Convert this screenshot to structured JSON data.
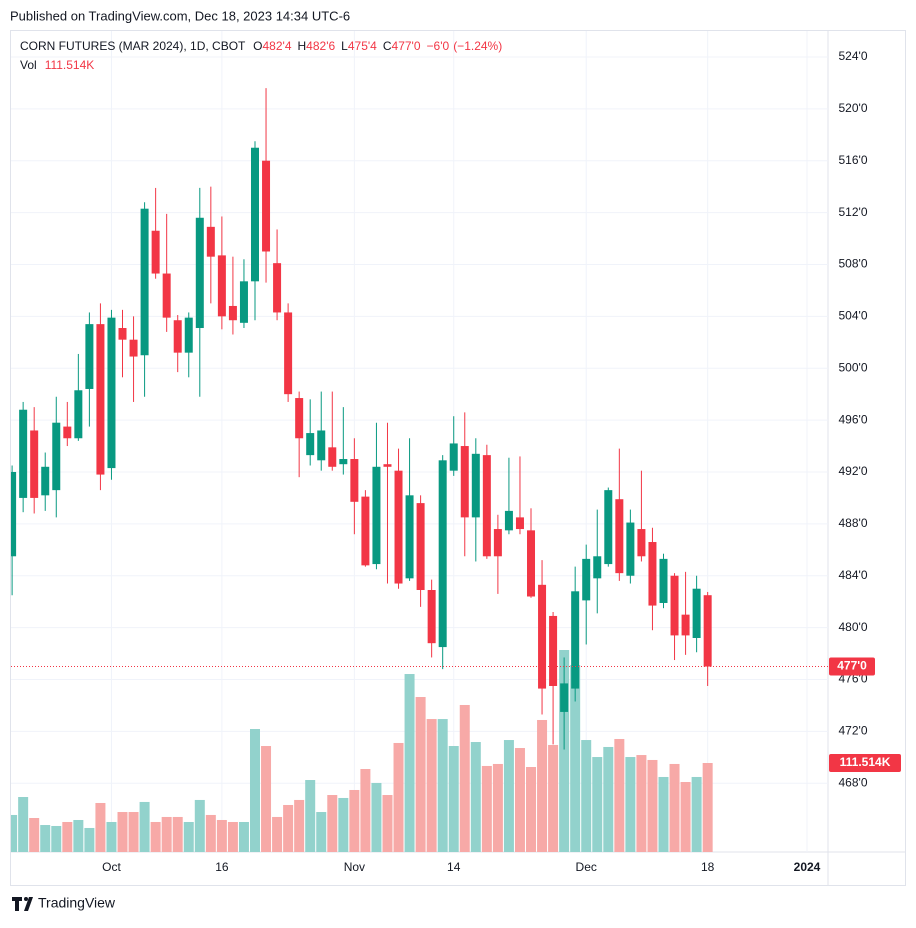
{
  "published": "Published on TradingView.com, Dec 18, 2023 14:34 UTC-6",
  "brand": "TradingView",
  "chart_data": {
    "type": "candlestick",
    "title": "CORN FUTURES (MAR 2024), 1D, CBOT",
    "legend": [
      {
        "key": "O",
        "value": 482.5,
        "label": "482'4"
      },
      {
        "key": "H",
        "value": 482.75,
        "label": "482'6"
      },
      {
        "key": "L",
        "value": 475.5,
        "label": "475'4"
      },
      {
        "key": "C",
        "value": 477,
        "label": "477'0"
      }
    ],
    "change": {
      "value": -6,
      "label": "−6'0",
      "percent": -1.24,
      "percent_label": "(−1.24%)"
    },
    "volume_title": "Vol",
    "volume_label": "111.514K",
    "last_price": {
      "value": 477,
      "label": "477'0"
    },
    "up_color": "#089981",
    "down_color": "#f23645",
    "volume_up_color": "#92d2cc",
    "volume_down_color": "#f7a9a7",
    "ylim": [
      462.7,
      526
    ],
    "yticks": [
      {
        "value": 468,
        "label": "468'0"
      },
      {
        "value": 472,
        "label": "472'0"
      },
      {
        "value": 476,
        "label": "476'0"
      },
      {
        "value": 480,
        "label": "480'0"
      },
      {
        "value": 484,
        "label": "484'0"
      },
      {
        "value": 488,
        "label": "488'0"
      },
      {
        "value": 492,
        "label": "492'0"
      },
      {
        "value": 496,
        "label": "496'0"
      },
      {
        "value": 500,
        "label": "500'0"
      },
      {
        "value": 504,
        "label": "504'0"
      },
      {
        "value": 508,
        "label": "508'0"
      },
      {
        "value": 512,
        "label": "512'0"
      },
      {
        "value": 516,
        "label": "516'0"
      },
      {
        "value": 520,
        "label": "520'0"
      },
      {
        "value": 524,
        "label": "524'0"
      }
    ],
    "xlim": [
      -0.1,
      73.9
    ],
    "xticks": [
      {
        "value": 9,
        "label": "Oct"
      },
      {
        "value": 19,
        "label": "16"
      },
      {
        "value": 31,
        "label": "Nov"
      },
      {
        "value": 40,
        "label": "14"
      },
      {
        "value": 52,
        "label": "Dec"
      },
      {
        "value": 63,
        "label": "18"
      },
      {
        "value": 72,
        "label": "2024"
      }
    ],
    "grid": true,
    "open": [
      485.5,
      490,
      495.2,
      490.2,
      490.6,
      495.5,
      494.6,
      498.4,
      503.4,
      492.3,
      503.1,
      502.2,
      501,
      510.6,
      507.3,
      503.7,
      501.2,
      503.1,
      510.9,
      508.7,
      504.8,
      503.5,
      506.7,
      516,
      508.1,
      504.3,
      497.7,
      493.3,
      492.9,
      493.9,
      492.6,
      493,
      490.1,
      484.9,
      492.6,
      492.1,
      483.8,
      489.6,
      482.9,
      478.5,
      492.1,
      494,
      488.5,
      493.3,
      487.6,
      487.5,
      488.5,
      487.5,
      483.3,
      480.9,
      473.5,
      475.3,
      482.1,
      483.8,
      484.9,
      489.9,
      484,
      487.6,
      486.6,
      481.9,
      484,
      481,
      479.2,
      482.5
    ],
    "high": [
      492.5,
      497.4,
      497,
      493.5,
      497.8,
      497.4,
      501.1,
      504.3,
      505,
      504.5,
      504.5,
      504,
      512.8,
      513.9,
      511.9,
      504.1,
      504.3,
      513.9,
      514,
      511.7,
      508.6,
      508.4,
      517.5,
      521.6,
      510.7,
      505,
      498.2,
      497.6,
      498.2,
      498.2,
      497,
      494.6,
      490.6,
      495.8,
      495.8,
      493.8,
      494.6,
      490.2,
      483.7,
      493.3,
      496.3,
      496.6,
      494.6,
      494.1,
      488.7,
      493.1,
      493.2,
      489.2,
      485.2,
      481.2,
      477.7,
      484.7,
      486.4,
      489.1,
      490.8,
      493.8,
      489.1,
      492.1,
      487.7,
      485.7,
      484.2,
      484.3,
      484,
      482.75
    ],
    "low": [
      482.5,
      488.9,
      488.8,
      489,
      488.5,
      494,
      494.4,
      495.5,
      490.6,
      491.4,
      499.3,
      497.4,
      497.8,
      506.9,
      502.8,
      499.7,
      499.3,
      497.8,
      505,
      503,
      502.6,
      503.1,
      503.7,
      506.6,
      503.7,
      497.4,
      491.6,
      492.5,
      492.1,
      492.1,
      491.8,
      487.2,
      484.7,
      484.5,
      483.4,
      483,
      483.6,
      481.6,
      477.7,
      476.8,
      491.7,
      485.5,
      485.1,
      485.3,
      482.6,
      487.2,
      487.2,
      482.3,
      473.3,
      471,
      470.6,
      474.3,
      478.7,
      481.1,
      484.7,
      483.6,
      483.4,
      485.1,
      479.8,
      481.5,
      477.5,
      477.9,
      478.1,
      475.5
    ],
    "close": [
      492,
      496.8,
      490,
      492.4,
      495.8,
      494.6,
      498.3,
      503.4,
      491.8,
      503.9,
      502.2,
      500.9,
      512.3,
      507.3,
      503.9,
      501.2,
      503.9,
      511.6,
      508.6,
      504,
      503.7,
      506.7,
      517,
      509,
      504.3,
      498,
      494.6,
      495,
      495.2,
      492.4,
      493,
      489.7,
      484.8,
      492.4,
      492.4,
      483.4,
      490.2,
      482.9,
      478.8,
      492.9,
      494.2,
      488.5,
      493.4,
      485.5,
      485.5,
      489,
      487.6,
      482.4,
      475.3,
      475.5,
      475.7,
      482.8,
      485.3,
      485.5,
      490.6,
      484.2,
      488.1,
      485.5,
      481.7,
      485.3,
      479.4,
      479.4,
      483,
      477
    ],
    "volume": [
      46.4,
      68.9,
      42.6,
      33.8,
      32.6,
      37.6,
      40.1,
      30.1,
      61.4,
      37.6,
      50.1,
      50.1,
      62.7,
      37.6,
      43.9,
      43.9,
      37.6,
      65.2,
      46.4,
      40.1,
      37.6,
      37.6,
      154.1,
      132.8,
      43.9,
      58.9,
      65.2,
      90.2,
      50.1,
      71.4,
      67.7,
      77.7,
      104,
      86.5,
      71.4,
      136.6,
      223,
      194.2,
      166.6,
      166.6,
      132.8,
      184.2,
      137.8,
      107.8,
      110.3,
      140.3,
      130.3,
      106.5,
      165.4,
      134.1,
      253.1,
      234.3,
      140.3,
      119,
      131.6,
      141.6,
      119,
      121.5,
      115.3,
      94,
      110.3,
      87.7,
      94,
      111.514
    ]
  }
}
